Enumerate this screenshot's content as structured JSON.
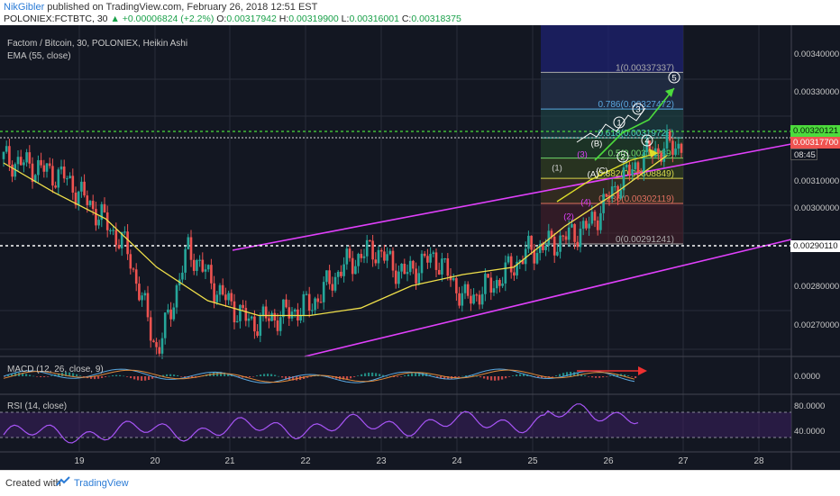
{
  "header": {
    "user": "NikGibler",
    "publish_text": " published on TradingView.com, February 26, 2018 12:51 EST",
    "symbol_line": "POLONIEX:FCTBTC, 30",
    "change_text": "▲ +0.00006824 (+2.2%)",
    "ohlc": {
      "o_label": "O:",
      "o": "0.00317942",
      "h_label": "H:",
      "h": "0.00319900",
      "l_label": "L:",
      "l": "0.00316001",
      "c_label": "C:",
      "c": "0.00318375"
    },
    "last_price": "0.00317700"
  },
  "chart": {
    "title": "Factom / Bitcoin, 30, POLONIEX, Heikin Ashi",
    "ema_label": "EMA (55, close)",
    "macd_label": "MACD (12, 26, close, 9)",
    "rsi_label": "RSI (14, close)",
    "colors": {
      "bg": "#131722",
      "up": "#26a69a",
      "down": "#ef5350",
      "ema": "#f0e04a",
      "channel": "#e040fb",
      "green_line": "#4cdb3c",
      "rsi": "#a855f7"
    },
    "price_axis": [
      "0.00340000",
      "0.00330000",
      "0.00310000",
      "0.00300000",
      "0.00280000",
      "0.00270000"
    ],
    "tag_green": "0.00320121",
    "tag_red": "0.00317700",
    "tag_time": "08:45",
    "tag_white": "0.00290110",
    "macd_axis": "0.0000",
    "rsi_axis": [
      "80.0000",
      "40.0000"
    ],
    "x_axis": [
      "19",
      "20",
      "21",
      "22",
      "23",
      "24",
      "25",
      "26",
      "27",
      "28"
    ],
    "fib": [
      {
        "ratio": "1",
        "price": "0.00337337"
      },
      {
        "ratio": "0.786",
        "price": "0.00327472"
      },
      {
        "ratio": "0.618",
        "price": "0.00319728"
      },
      {
        "ratio": "0.5",
        "price": "0.00314289"
      },
      {
        "ratio": "0.382",
        "price": "0.00308849"
      },
      {
        "ratio": "0.236",
        "price": "0.00302119"
      },
      {
        "ratio": "0",
        "price": "0.00291241"
      }
    ],
    "wave_labels": [
      "(1)",
      "(2)",
      "(3)",
      "(4)",
      "(B)",
      "(A)",
      "(C)",
      "1",
      "2",
      "3",
      "4",
      "5"
    ]
  },
  "chart_data": {
    "type": "candlestick",
    "title": "Factom / Bitcoin, 30, POLONIEX, Heikin Ashi",
    "x_categories": [
      "19",
      "20",
      "21",
      "22",
      "23",
      "24",
      "25",
      "26",
      "27",
      "28"
    ],
    "ylim": [
      0.00261,
      0.0035
    ],
    "key_levels": {
      "support_line": 0.0029011,
      "resistance_line": 0.00320121,
      "last": 0.003177
    },
    "ema_approx": [
      0.00313,
      0.00305,
      0.00298,
      0.00285,
      0.00276,
      0.00272,
      0.00272,
      0.00274,
      0.0028,
      0.00283,
      0.00285,
      0.00296,
      0.00305,
      0.00315
    ],
    "price_approx": [
      0.00314,
      0.00312,
      0.00309,
      0.003,
      0.0029,
      0.00262,
      0.0029,
      0.00278,
      0.0027,
      0.00272,
      0.00275,
      0.00285,
      0.0029,
      0.00283,
      0.00288,
      0.00276,
      0.00281,
      0.00289,
      0.00292,
      0.00296,
      0.00308,
      0.00316,
      0.00318
    ]
  },
  "footer": {
    "created": "Created with",
    "brand": "TradingView"
  }
}
